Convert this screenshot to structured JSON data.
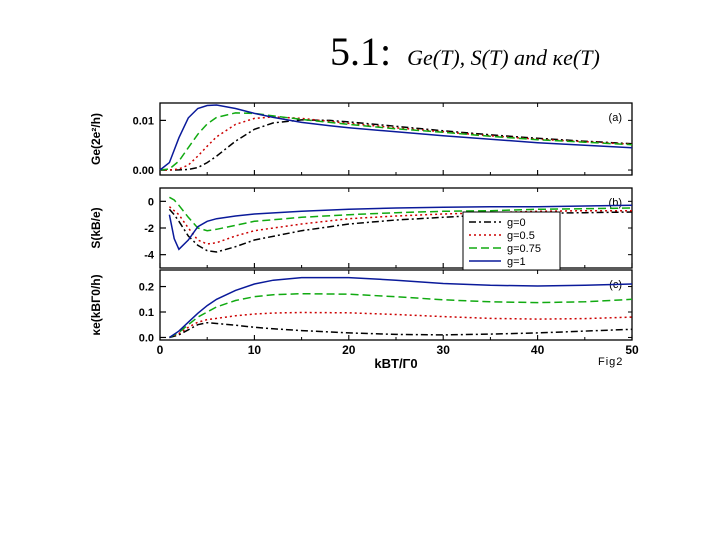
{
  "slide": {
    "number": "5.1:",
    "formula": "Ge(T), S(T) and κe(T)"
  },
  "figure_label": "Fig2",
  "xaxis": {
    "label": "kBT/Γ0",
    "ticks": [
      0,
      10,
      20,
      30,
      40,
      50
    ],
    "range": [
      0,
      50
    ]
  },
  "series_style": [
    {
      "name": "g=0",
      "color": "#000000",
      "dash": "7,3,2,3"
    },
    {
      "name": "g=0.5",
      "color": "#cc0000",
      "dash": "2,3"
    },
    {
      "name": "g=0.75",
      "color": "#11aa11",
      "dash": "8,4"
    },
    {
      "name": "g=1",
      "color": "#0a1a9a",
      "dash": ""
    }
  ],
  "legend": {
    "entries": [
      "g=0",
      "g=0.5",
      "g=0.75",
      "g=1"
    ],
    "position": "inside panel (b), right"
  },
  "chart_data": [
    {
      "type": "line",
      "panel_label": "(a)",
      "ylabel": "Ge(2e²/h)",
      "ylim": [
        -0.001,
        0.0135
      ],
      "yticks": [
        0.0,
        0.01
      ],
      "ytick_labels": [
        "0.00",
        "0.01"
      ],
      "x": [
        0,
        1,
        2,
        3,
        4,
        5,
        6,
        8,
        10,
        12,
        15,
        18,
        20,
        25,
        30,
        35,
        40,
        45,
        50
      ],
      "series": [
        {
          "name": "g=0",
          "values": [
            0,
            0,
            2e-05,
            0.0001,
            0.0005,
            0.0015,
            0.0028,
            0.0058,
            0.0082,
            0.0095,
            0.0101,
            0.01,
            0.0097,
            0.0088,
            0.0079,
            0.0071,
            0.0064,
            0.0058,
            0.0053
          ]
        },
        {
          "name": "g=0.5",
          "values": [
            0,
            0,
            0.0002,
            0.001,
            0.0028,
            0.0048,
            0.0067,
            0.0092,
            0.0104,
            0.0107,
            0.0104,
            0.0098,
            0.0094,
            0.0085,
            0.0077,
            0.0069,
            0.0062,
            0.0057,
            0.0052
          ]
        },
        {
          "name": "g=0.75",
          "values": [
            0,
            0.0002,
            0.0018,
            0.0045,
            0.0072,
            0.0093,
            0.0106,
            0.0115,
            0.0114,
            0.0109,
            0.0102,
            0.0096,
            0.0092,
            0.0083,
            0.0076,
            0.0068,
            0.0061,
            0.0056,
            0.0051
          ]
        },
        {
          "name": "g=1",
          "values": [
            0,
            0.0015,
            0.0065,
            0.0105,
            0.0124,
            0.013,
            0.0131,
            0.0124,
            0.0114,
            0.0106,
            0.0096,
            0.0089,
            0.0085,
            0.0077,
            0.0069,
            0.0062,
            0.0055,
            0.005,
            0.0045
          ]
        }
      ]
    },
    {
      "type": "line",
      "panel_label": "(b)",
      "ylabel": "S(kB/e)",
      "ylim": [
        -5.0,
        1.0
      ],
      "yticks": [
        0,
        -2,
        -4
      ],
      "ytick_labels": [
        "0",
        "-2",
        "-4"
      ],
      "x": [
        1,
        1.5,
        2,
        3,
        4,
        5,
        6,
        8,
        10,
        15,
        20,
        25,
        30,
        35,
        40,
        45,
        50
      ],
      "series": [
        {
          "name": "g=0",
          "values": [
            -0.6,
            -1.0,
            -1.5,
            -2.6,
            -3.3,
            -3.7,
            -3.8,
            -3.4,
            -2.9,
            -2.2,
            -1.7,
            -1.4,
            -1.2,
            -1.0,
            -0.9,
            -0.85,
            -0.8
          ]
        },
        {
          "name": "g=0.5",
          "values": [
            -0.4,
            -0.7,
            -1.0,
            -2.0,
            -2.9,
            -3.2,
            -3.1,
            -2.6,
            -2.2,
            -1.7,
            -1.3,
            -1.1,
            -0.95,
            -0.85,
            -0.75,
            -0.7,
            -0.7
          ]
        },
        {
          "name": "g=0.75",
          "values": [
            0.3,
            0.1,
            -0.3,
            -1.2,
            -2.0,
            -2.2,
            -2.1,
            -1.8,
            -1.5,
            -1.2,
            -1.0,
            -0.85,
            -0.75,
            -0.7,
            -0.6,
            -0.55,
            -0.5
          ]
        },
        {
          "name": "g=1",
          "values": [
            -1.0,
            -2.8,
            -3.6,
            -2.9,
            -1.9,
            -1.5,
            -1.3,
            -1.1,
            -0.95,
            -0.75,
            -0.6,
            -0.5,
            -0.45,
            -0.4,
            -0.4,
            -0.35,
            -0.3
          ]
        }
      ]
    },
    {
      "type": "line",
      "panel_label": "(c)",
      "ylabel": "κe(kBΓ0/h)",
      "ylim": [
        -0.01,
        0.265
      ],
      "yticks": [
        0.0,
        0.1,
        0.2
      ],
      "ytick_labels": [
        "0.0",
        "0.1",
        "0.2"
      ],
      "x": [
        1,
        2,
        3,
        4,
        5,
        6,
        8,
        10,
        12,
        15,
        20,
        25,
        30,
        35,
        40,
        45,
        50
      ],
      "series": [
        {
          "name": "g=0",
          "values": [
            0,
            0.01,
            0.03,
            0.05,
            0.058,
            0.055,
            0.048,
            0.04,
            0.034,
            0.027,
            0.018,
            0.012,
            0.01,
            0.013,
            0.018,
            0.025,
            0.032
          ]
        },
        {
          "name": "g=0.5",
          "values": [
            0,
            0.015,
            0.04,
            0.06,
            0.07,
            0.075,
            0.085,
            0.092,
            0.096,
            0.098,
            0.097,
            0.09,
            0.082,
            0.075,
            0.072,
            0.074,
            0.08
          ]
        },
        {
          "name": "g=0.75",
          "values": [
            0,
            0.02,
            0.05,
            0.08,
            0.1,
            0.12,
            0.145,
            0.16,
            0.168,
            0.172,
            0.17,
            0.16,
            0.148,
            0.14,
            0.137,
            0.14,
            0.15
          ]
        },
        {
          "name": "g=1",
          "values": [
            0,
            0.025,
            0.06,
            0.095,
            0.125,
            0.15,
            0.185,
            0.21,
            0.225,
            0.235,
            0.235,
            0.225,
            0.212,
            0.205,
            0.202,
            0.205,
            0.21
          ]
        }
      ]
    }
  ]
}
